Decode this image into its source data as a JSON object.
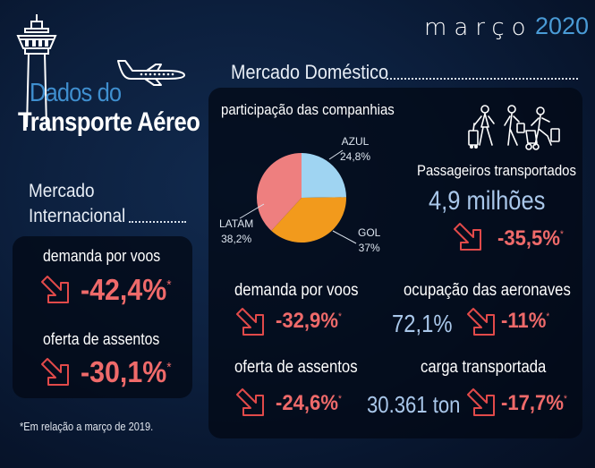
{
  "header": {
    "month": "março",
    "year": "2020",
    "title_line1": "Dados do",
    "title_line2": "Transporte Aéreo"
  },
  "icons": {
    "tower": "control-tower-icon",
    "plane": "airplane-icon",
    "passengers": "travelers-icon",
    "arrow": "down-arrow-icon"
  },
  "international": {
    "heading_line1": "Mercado",
    "heading_line2": "Internacional",
    "demand_label": "demanda por voos",
    "demand_value": "-42,4%",
    "seats_label": "oferta de assentos",
    "seats_value": "-30,1%",
    "asterisk": "*"
  },
  "domestic": {
    "heading": "Mercado Doméstico",
    "share_title": "participação das companhias",
    "share": [
      {
        "name": "AZUL",
        "pct_label": "24,8%",
        "value": 24.8,
        "color": "#9fd4f2"
      },
      {
        "name": "GOL",
        "pct_label": "37%",
        "value": 37.0,
        "color": "#f29a1c"
      },
      {
        "name": "LATAM",
        "pct_label": "38,2%",
        "value": 38.2,
        "color": "#ee7f7f"
      }
    ],
    "passengers_label": "Passageiros transportados",
    "passengers_value": "4,9 milhões",
    "passengers_change": "-35,5%",
    "demand_label": "demanda por voos",
    "demand_change": "-32,9%",
    "occupancy_label": "ocupação das aeronaves",
    "occupancy_value": "72,1%",
    "occupancy_change": "-11%",
    "seats_label": "oferta de assentos",
    "seats_change": "-24,6%",
    "cargo_label": "carga transportada",
    "cargo_value": "30.361 ton",
    "cargo_change": "-17,7%",
    "asterisk": "*"
  },
  "footnote": "*Em relação a março de 2019.",
  "colors": {
    "negative": "#ef6a6a",
    "accent_blue": "#4a9bd6",
    "value_blue": "#a9c7ea"
  }
}
